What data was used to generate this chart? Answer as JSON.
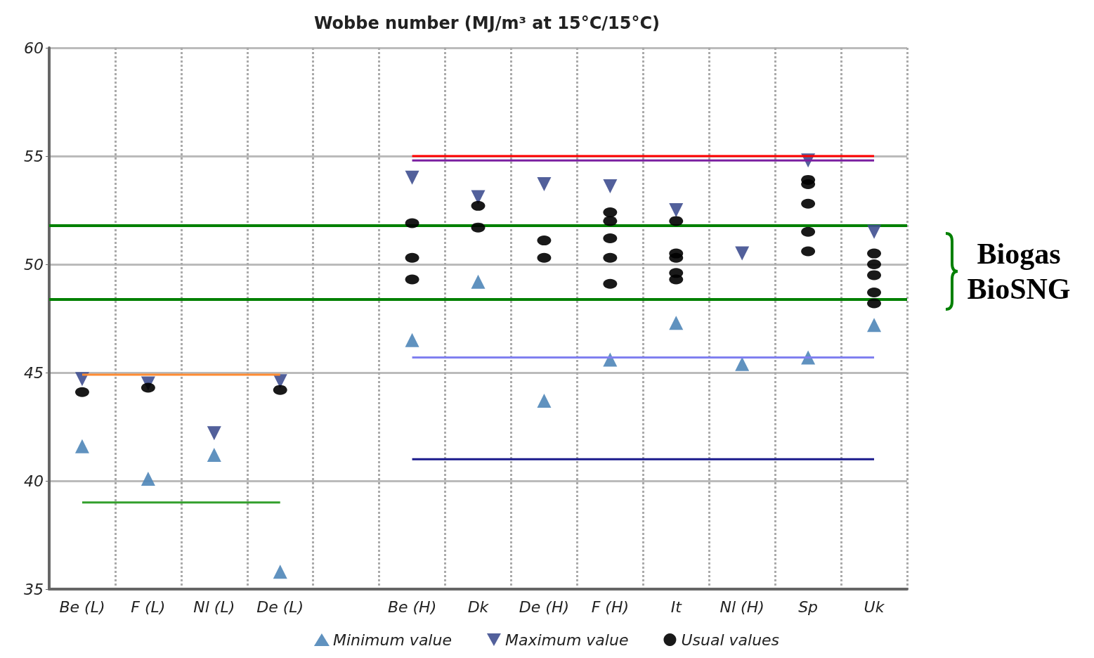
{
  "chart_data": {
    "type": "scatter",
    "title": "Wobbe number (MJ/m³ at 15°C/15°C)",
    "categories": [
      "Be (L)",
      "F (L)",
      "Nl (L)",
      "De (L)",
      null,
      "Be (H)",
      "Dk",
      "De (H)",
      "F (H)",
      "It",
      "Nl (H)",
      "Sp",
      "Uk"
    ],
    "ylim": [
      35,
      60
    ],
    "yticks": [
      35,
      40,
      45,
      50,
      55,
      60
    ],
    "grid": true,
    "legend": "bottom",
    "series": [
      {
        "name": "Minimum value",
        "color": "#4f86b8",
        "marker": "triangle",
        "values": [
          41.6,
          40.1,
          41.2,
          35.8,
          null,
          46.5,
          49.2,
          43.7,
          45.6,
          47.3,
          45.4,
          45.7,
          47.2
        ]
      },
      {
        "name": "Maximum value",
        "color": "#3f4f90",
        "marker": "triangle-down",
        "values": [
          44.7,
          44.5,
          42.2,
          44.6,
          null,
          54.0,
          53.1,
          53.7,
          53.6,
          52.5,
          50.5,
          54.8,
          51.5
        ]
      },
      {
        "name": "Usual values",
        "color": "#000000",
        "marker": "circle",
        "x": [
          "Be (L)",
          "F (L)",
          "De (L)",
          "Be (H)",
          "Be (H)",
          "Be (H)",
          "Dk",
          "Dk",
          "De (H)",
          "De (H)",
          "F (H)",
          "F (H)",
          "F (H)",
          "F (H)",
          "F (H)",
          "It",
          "It",
          "It",
          "It",
          "It",
          "Sp",
          "Sp",
          "Sp",
          "Sp",
          "Sp",
          "Uk",
          "Uk",
          "Uk",
          "Uk",
          "Uk"
        ],
        "values": [
          44.1,
          44.3,
          44.2,
          51.9,
          50.3,
          49.3,
          52.7,
          51.7,
          51.1,
          50.3,
          52.4,
          52.0,
          51.2,
          50.3,
          49.1,
          52.0,
          50.5,
          50.3,
          49.6,
          49.3,
          53.9,
          53.7,
          52.8,
          51.5,
          50.6,
          50.5,
          50.0,
          49.5,
          48.7,
          48.2
        ]
      },
      {
        "type": "line",
        "color": "#ff0000",
        "marker": "none",
        "values": [
          null,
          null,
          null,
          null,
          null,
          55.0,
          55.0,
          55.0,
          55.0,
          55.0,
          55.0,
          55.0,
          55.0
        ]
      },
      {
        "type": "line",
        "color": "#7a1fa0",
        "marker": "none",
        "values": [
          null,
          null,
          null,
          null,
          null,
          54.8,
          54.8,
          54.8,
          54.8,
          54.8,
          54.8,
          54.8,
          54.8
        ]
      },
      {
        "type": "line",
        "color": "#8080f0",
        "marker": "none",
        "values": [
          null,
          null,
          null,
          null,
          null,
          45.7,
          45.7,
          45.7,
          45.7,
          45.7,
          45.7,
          45.7,
          45.7
        ]
      },
      {
        "type": "line",
        "color": "#1a1a8c",
        "marker": "none",
        "values": [
          null,
          null,
          null,
          null,
          null,
          41.0,
          41.0,
          41.0,
          41.0,
          41.0,
          41.0,
          41.0,
          41.0
        ]
      },
      {
        "type": "line",
        "color": "#ff8c33",
        "marker": "none",
        "values": [
          44.9,
          44.9,
          44.9,
          44.9,
          null,
          null,
          null,
          null,
          null,
          null,
          null,
          null,
          null
        ]
      },
      {
        "type": "line",
        "color": "#33a02c",
        "marker": "none",
        "values": [
          39.0,
          39.0,
          39.0,
          39.0,
          null,
          null,
          null,
          null,
          null,
          null,
          null,
          null,
          null
        ]
      }
    ],
    "ref_lines": [
      {
        "axis": "y",
        "value": 51.8,
        "label": null,
        "color": "#008000"
      },
      {
        "axis": "y",
        "value": 48.4,
        "label": null,
        "color": "#008000"
      }
    ],
    "annotations": [
      "Biogas BioSNG"
    ]
  }
}
